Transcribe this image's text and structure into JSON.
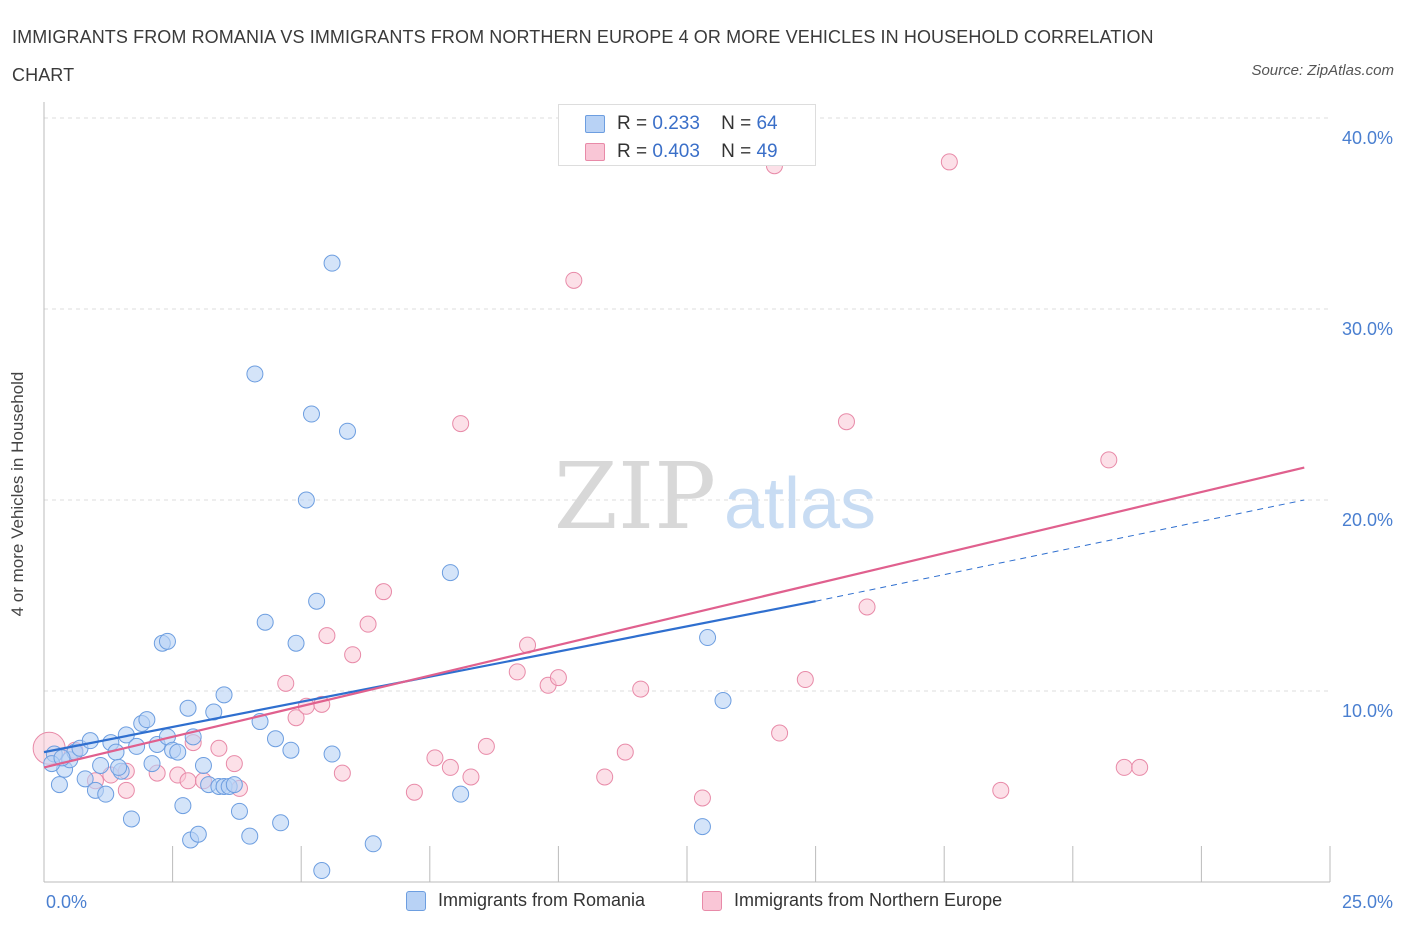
{
  "title": "IMMIGRANTS FROM ROMANIA VS IMMIGRANTS FROM NORTHERN EUROPE 4 OR MORE VEHICLES IN HOUSEHOLD CORRELATION CHART",
  "source": "Source: ZipAtlas.com",
  "watermark": {
    "zip": "ZIP",
    "atlas": "atlas"
  },
  "legend": {
    "r_label": "R =",
    "n_label": "N =",
    "romania": {
      "r": "0.233",
      "n": "64"
    },
    "northern_europe": {
      "r": "0.403",
      "n": "49"
    }
  },
  "bottom_legend": {
    "romania": "Immigrants from Romania",
    "northern_europe": "Immigrants from Northern Europe"
  },
  "colors": {
    "romania_fill": "#b8d2f5",
    "romania_stroke": "#6d9ee0",
    "romania_line": "#2f6fcf",
    "northern_fill": "#f9c6d6",
    "northern_stroke": "#e88aa8",
    "northern_line": "#e0608e",
    "tick_text": "#4a7fd0",
    "grid": "#dddddd"
  },
  "chart_data": {
    "type": "scatter",
    "ylabel": "4 or more Vehicles in Household",
    "xlabel": "",
    "xlim": [
      0,
      25
    ],
    "ylim": [
      0,
      40
    ],
    "x_tick_labels": [
      "0.0%",
      "25.0%"
    ],
    "y_ticks": [
      10,
      20,
      30,
      40
    ],
    "y_tick_labels": [
      "10.0%",
      "20.0%",
      "30.0%",
      "40.0%"
    ],
    "grid": true,
    "series": [
      {
        "name": "Immigrants from Romania",
        "trend": {
          "x": [
            0,
            15
          ],
          "y": [
            6.8,
            14.7
          ],
          "dashed_extension_to_x": 24.5,
          "dashed_end_y": 20.0
        },
        "points": [
          [
            0.2,
            6.7
          ],
          [
            0.3,
            5.1
          ],
          [
            0.4,
            5.9
          ],
          [
            0.5,
            6.4
          ],
          [
            0.6,
            6.8
          ],
          [
            0.7,
            7.0
          ],
          [
            0.8,
            5.4
          ],
          [
            0.9,
            7.4
          ],
          [
            1.0,
            4.8
          ],
          [
            1.1,
            6.1
          ],
          [
            1.2,
            4.6
          ],
          [
            1.3,
            7.3
          ],
          [
            1.4,
            6.8
          ],
          [
            1.5,
            5.8
          ],
          [
            1.6,
            7.7
          ],
          [
            1.7,
            3.3
          ],
          [
            1.8,
            7.1
          ],
          [
            1.9,
            8.3
          ],
          [
            2.0,
            8.5
          ],
          [
            2.1,
            6.2
          ],
          [
            2.2,
            7.2
          ],
          [
            2.3,
            12.5
          ],
          [
            2.4,
            12.6
          ],
          [
            2.4,
            7.6
          ],
          [
            2.5,
            6.9
          ],
          [
            2.6,
            6.8
          ],
          [
            2.7,
            4.0
          ],
          [
            2.8,
            9.1
          ],
          [
            2.85,
            2.2
          ],
          [
            2.9,
            7.6
          ],
          [
            3.0,
            2.5
          ],
          [
            3.1,
            6.1
          ],
          [
            3.2,
            5.1
          ],
          [
            3.3,
            8.9
          ],
          [
            3.4,
            5.0
          ],
          [
            3.5,
            5.0
          ],
          [
            3.5,
            9.8
          ],
          [
            3.6,
            5.0
          ],
          [
            3.7,
            5.1
          ],
          [
            3.8,
            3.7
          ],
          [
            4.0,
            2.4
          ],
          [
            4.1,
            26.6
          ],
          [
            4.2,
            8.4
          ],
          [
            4.3,
            13.6
          ],
          [
            4.5,
            7.5
          ],
          [
            4.6,
            3.1
          ],
          [
            4.8,
            6.9
          ],
          [
            4.9,
            12.5
          ],
          [
            5.1,
            20.0
          ],
          [
            5.2,
            24.5
          ],
          [
            5.3,
            14.7
          ],
          [
            5.4,
            0.6
          ],
          [
            5.6,
            6.7
          ],
          [
            5.6,
            32.4
          ],
          [
            5.9,
            23.6
          ],
          [
            6.4,
            2.0
          ],
          [
            7.9,
            16.2
          ],
          [
            8.1,
            4.6
          ],
          [
            12.8,
            2.9
          ],
          [
            12.9,
            12.8
          ],
          [
            13.2,
            9.5
          ],
          [
            0.15,
            6.2
          ],
          [
            0.35,
            6.5
          ],
          [
            1.45,
            6.0
          ]
        ]
      },
      {
        "name": "Immigrants from Northern Europe",
        "trend": {
          "x": [
            0,
            24.5
          ],
          "y": [
            6.0,
            21.7
          ]
        },
        "points": [
          [
            0.1,
            7.0
          ],
          [
            0.6,
            6.9
          ],
          [
            1.0,
            5.3
          ],
          [
            1.3,
            5.6
          ],
          [
            1.6,
            5.8
          ],
          [
            1.6,
            4.8
          ],
          [
            2.2,
            5.7
          ],
          [
            2.6,
            5.6
          ],
          [
            2.8,
            5.3
          ],
          [
            2.9,
            7.3
          ],
          [
            3.1,
            5.3
          ],
          [
            3.4,
            7.0
          ],
          [
            3.7,
            6.2
          ],
          [
            3.8,
            4.9
          ],
          [
            4.7,
            10.4
          ],
          [
            4.9,
            8.6
          ],
          [
            5.1,
            9.2
          ],
          [
            5.4,
            9.3
          ],
          [
            5.5,
            12.9
          ],
          [
            5.8,
            5.7
          ],
          [
            6.0,
            11.9
          ],
          [
            6.3,
            13.5
          ],
          [
            6.6,
            15.2
          ],
          [
            7.2,
            4.7
          ],
          [
            7.6,
            6.5
          ],
          [
            7.9,
            6.0
          ],
          [
            8.1,
            24.0
          ],
          [
            8.3,
            5.5
          ],
          [
            8.6,
            7.1
          ],
          [
            9.2,
            11.0
          ],
          [
            9.4,
            12.4
          ],
          [
            9.8,
            10.3
          ],
          [
            10.0,
            10.7
          ],
          [
            10.3,
            31.5
          ],
          [
            10.9,
            5.5
          ],
          [
            11.3,
            6.8
          ],
          [
            11.6,
            10.1
          ],
          [
            12.5,
            40.0
          ],
          [
            12.8,
            4.4
          ],
          [
            14.2,
            37.5
          ],
          [
            14.3,
            7.8
          ],
          [
            14.8,
            10.6
          ],
          [
            15.6,
            24.1
          ],
          [
            16.0,
            14.4
          ],
          [
            17.6,
            37.7
          ],
          [
            18.6,
            4.8
          ],
          [
            20.7,
            22.1
          ],
          [
            21.0,
            6.0
          ],
          [
            21.3,
            6.0
          ]
        ]
      }
    ]
  }
}
